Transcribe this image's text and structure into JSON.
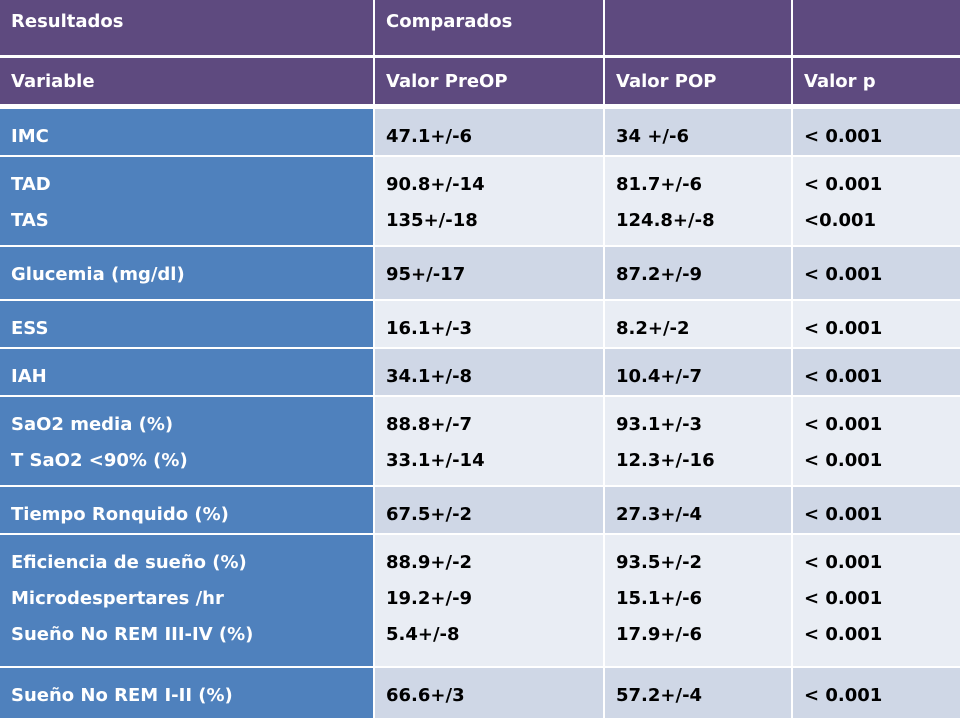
{
  "header_row1": [
    "Resultados",
    "Comparados",
    "",
    ""
  ],
  "header_row2": [
    "Variable",
    "Valor PreOP",
    "Valor POP",
    "Valor  p"
  ],
  "rows": [
    {
      "variable": [
        "IMC"
      ],
      "preop": [
        "47.1+/-6"
      ],
      "pop": [
        "34 +/-6"
      ],
      "p": [
        "< 0.001"
      ]
    },
    {
      "variable": [
        "TAD",
        "TAS"
      ],
      "preop": [
        "90.8+/-14",
        "135+/-18"
      ],
      "pop": [
        "81.7+/-6",
        "124.8+/-8"
      ],
      "p": [
        "< 0.001",
        "<0.001"
      ]
    },
    {
      "variable": [
        "Glucemia (mg/dl)"
      ],
      "preop": [
        "95+/-17"
      ],
      "pop": [
        "87.2+/-9"
      ],
      "p": [
        "< 0.001"
      ]
    },
    {
      "variable": [
        "ESS"
      ],
      "preop": [
        "16.1+/-3"
      ],
      "pop": [
        "8.2+/-2"
      ],
      "p": [
        "< 0.001"
      ]
    },
    {
      "variable": [
        "IAH"
      ],
      "preop": [
        "34.1+/-8"
      ],
      "pop": [
        "10.4+/-7"
      ],
      "p": [
        "< 0.001"
      ]
    },
    {
      "variable": [
        "SaO2 media (%)",
        "T SaO2 <90% (%)"
      ],
      "preop": [
        "88.8+/-7",
        "33.1+/-14"
      ],
      "pop": [
        "93.1+/-3",
        "12.3+/-16"
      ],
      "p": [
        "< 0.001",
        "< 0.001"
      ]
    },
    {
      "variable": [
        "Tiempo Ronquido (%)"
      ],
      "preop": [
        "67.5+/-2"
      ],
      "pop": [
        "27.3+/-4"
      ],
      "p": [
        "< 0.001"
      ]
    },
    {
      "variable": [
        "Eficiencia de sueño (%)",
        "Microdespertares /hr",
        "Sueño No REM III-IV (%)"
      ],
      "preop": [
        "88.9+/-2",
        "19.2+/-9",
        "5.4+/-8"
      ],
      "pop": [
        "93.5+/-2",
        "15.1+/-6",
        "17.9+/-6"
      ],
      "p": [
        "< 0.001",
        "< 0.001",
        "< 0.001"
      ]
    },
    {
      "variable": [
        "Sueño No REM  I-II (%)"
      ],
      "preop": [
        "66.6+/3"
      ],
      "pop": [
        "57.2+/-4"
      ],
      "p": [
        "< 0.001"
      ]
    }
  ],
  "colors": {
    "header_bg": "#5e4a7f",
    "label_bg": "#4f81bd",
    "row_dark": "#cfd7e6",
    "row_light": "#e9edf4"
  }
}
